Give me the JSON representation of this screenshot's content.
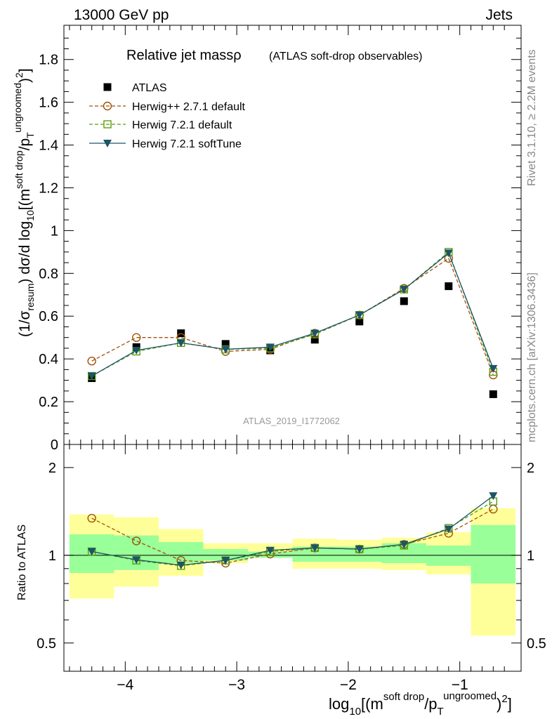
{
  "header": {
    "energy_label": "13000 GeV pp",
    "process_label": "Jets"
  },
  "side_text": {
    "rivet": "Rivet 3.1.10, ≥ 2.2M events",
    "mcplots": "mcplots.cern.ch [arXiv:1306.3436]"
  },
  "chart_data": {
    "type": "scatter",
    "title": "Relative jet massρ",
    "subtitle": "(ATLAS soft-drop observables)",
    "watermark": "ATLAS_2019_I1772062",
    "xlabel": "log10[(m^soft drop/pT^ungroomed)^2]",
    "ylabel_main": "(1/σresum) dσ/d log10[(m^soft drop/pT^ungroomed)^2]",
    "ylabel_ratio": "Ratio to ATLAS",
    "xlim": [
      -4.55,
      -0.45
    ],
    "ylim_main": [
      0,
      1.96
    ],
    "ylim_ratio": [
      0.4,
      2.4
    ],
    "ratio_scale": "log",
    "x_ticks": [
      -4,
      -3,
      -2,
      -1
    ],
    "x_tick_labels": [
      "−4",
      "−3",
      "−2",
      "−1"
    ],
    "y_ticks_main": [
      0,
      0.2,
      0.4,
      0.6,
      0.8,
      1,
      1.2,
      1.4,
      1.6,
      1.8
    ],
    "y_tick_labels_main": [
      "0",
      "0.2",
      "0.4",
      "0.6",
      "0.8",
      "1",
      "1.2",
      "1.4",
      "1.6",
      "1.8"
    ],
    "y_ticks_ratio": [
      0.5,
      1,
      2
    ],
    "y_tick_labels_ratio": [
      "0.5",
      "1",
      "2"
    ],
    "x": [
      -4.3,
      -3.9,
      -3.5,
      -3.1,
      -2.7,
      -2.3,
      -1.9,
      -1.5,
      -1.1,
      -0.7
    ],
    "bin_edges": [
      -4.5,
      -4.1,
      -3.7,
      -3.3,
      -2.9,
      -2.5,
      -2.1,
      -1.7,
      -1.3,
      -0.9,
      -0.5
    ],
    "legend_position": "top-left",
    "series": [
      {
        "name": "ATLAS",
        "marker": "filled-square",
        "color": "#000000",
        "values": [
          0.31,
          0.455,
          0.52,
          0.47,
          0.44,
          0.49,
          0.575,
          0.67,
          0.74,
          0.235
        ]
      },
      {
        "name": "Herwig++ 2.7.1 default",
        "marker": "open-circle",
        "color": "#a0520a",
        "line": "dashed",
        "values": [
          0.39,
          0.5,
          0.5,
          0.435,
          0.445,
          0.52,
          0.605,
          0.73,
          0.87,
          0.325
        ]
      },
      {
        "name": "Herwig 7.2.1 default",
        "marker": "open-square",
        "color": "#5a9e0f",
        "line": "dashed",
        "values": [
          0.32,
          0.435,
          0.475,
          0.445,
          0.45,
          0.515,
          0.605,
          0.725,
          0.9,
          0.34
        ]
      },
      {
        "name": "Herwig 7.2.1 softTune",
        "marker": "filled-triangle-down",
        "color": "#1d5468",
        "line": "solid",
        "values": [
          0.32,
          0.44,
          0.475,
          0.445,
          0.455,
          0.52,
          0.605,
          0.725,
          0.895,
          0.355
        ]
      }
    ],
    "ratio_series": [
      {
        "name": "Herwig++ 2.7.1 default",
        "values": [
          1.34,
          1.12,
          0.96,
          0.94,
          1.01,
          1.06,
          1.05,
          1.09,
          1.19,
          1.44
        ]
      },
      {
        "name": "Herwig 7.2.1 default",
        "values": [
          1.03,
          0.96,
          0.92,
          0.96,
          1.03,
          1.06,
          1.05,
          1.08,
          1.24,
          1.53
        ]
      },
      {
        "name": "Herwig 7.2.1 softTune",
        "values": [
          1.03,
          0.965,
          0.925,
          0.96,
          1.04,
          1.06,
          1.05,
          1.09,
          1.23,
          1.6
        ]
      }
    ],
    "uncertainty_bands": {
      "stat_color": "#99ff99",
      "total_color": "#ffff99",
      "inner_low": [
        0.87,
        0.89,
        0.94,
        0.96,
        0.98,
        0.95,
        0.95,
        0.94,
        0.92,
        0.8
      ],
      "inner_high": [
        1.18,
        1.17,
        1.11,
        1.05,
        1.03,
        1.07,
        1.07,
        1.1,
        1.08,
        1.27
      ],
      "outer_low": [
        0.71,
        0.78,
        0.85,
        0.94,
        0.98,
        0.9,
        0.9,
        0.89,
        0.86,
        0.53
      ],
      "outer_high": [
        1.38,
        1.35,
        1.23,
        1.1,
        1.1,
        1.14,
        1.13,
        1.15,
        1.2,
        1.45
      ]
    }
  }
}
